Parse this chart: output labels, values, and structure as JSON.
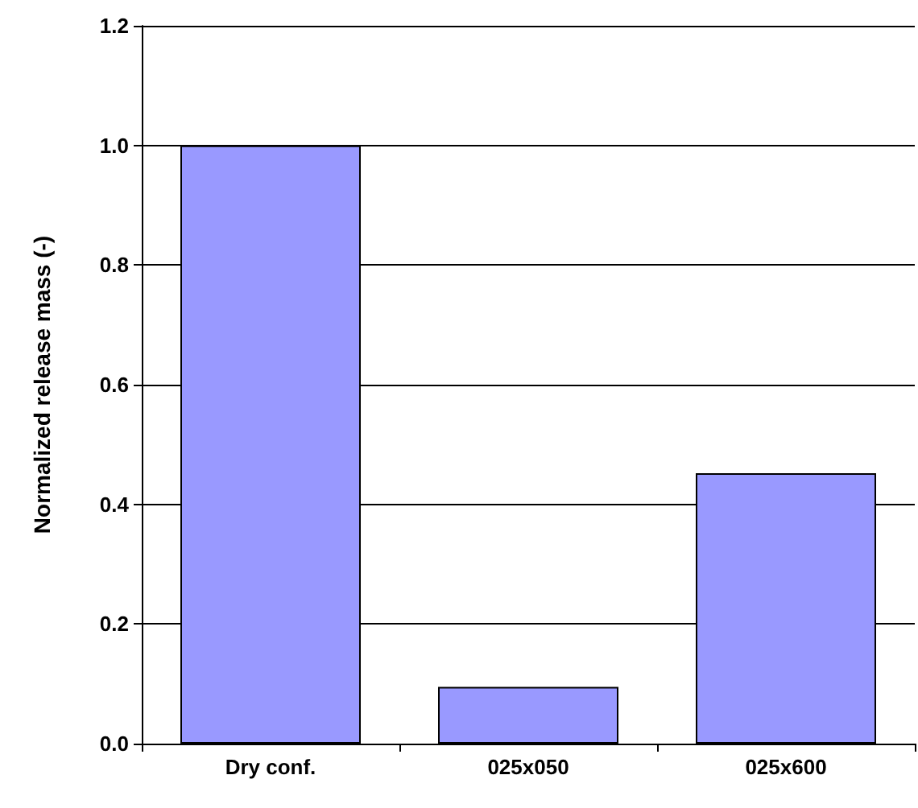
{
  "chart_data": {
    "type": "bar",
    "ylabel": "Normalized release mass (-)",
    "categories": [
      "Dry conf.",
      "025x050",
      "025x600"
    ],
    "values": [
      1.0,
      0.095,
      0.452
    ],
    "color": "#9999ff",
    "ylim": [
      0,
      1.2
    ],
    "yticks": [
      {
        "value": 0,
        "label": "0.0"
      },
      0.2,
      0.4,
      0.6,
      0.8,
      {
        "value": 1,
        "label": "1.0"
      },
      1.2
    ],
    "grid": "y"
  }
}
